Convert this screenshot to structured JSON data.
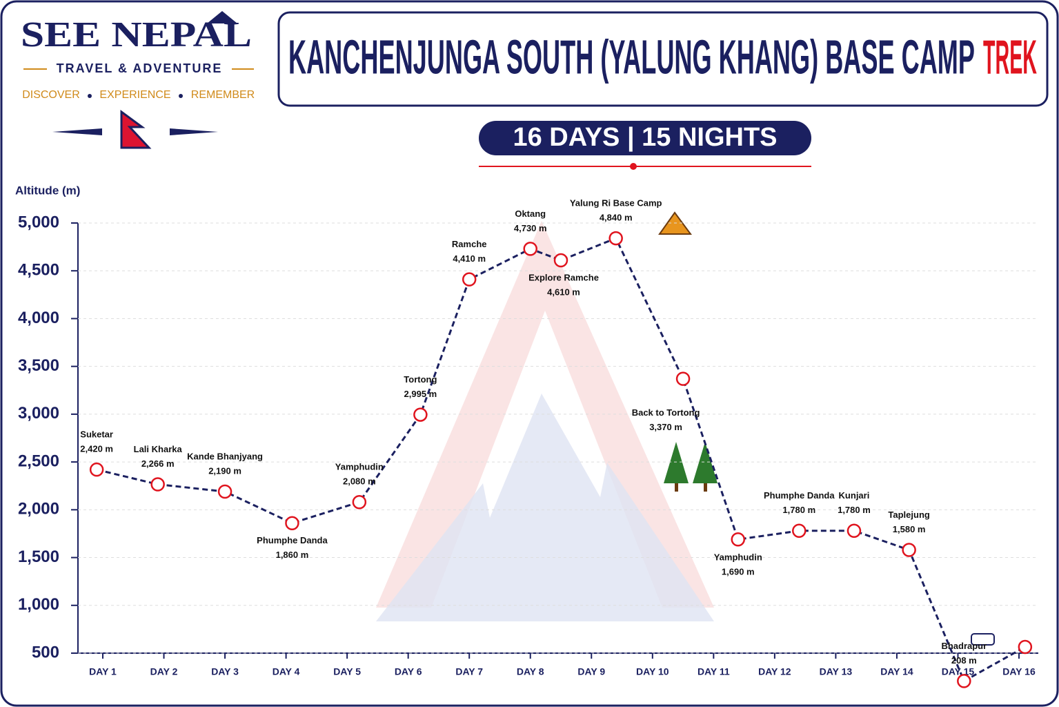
{
  "header": {
    "brand": "SEE NEPAL",
    "tagline": "TRAVEL & ADVENTURE",
    "motto": [
      "DISCOVER",
      "EXPERIENCE",
      "REMEMBER"
    ],
    "title": "KANCHENJUNGA SOUTH (YALUNG KHANG) BASE CAMP",
    "title_accent": "TREK",
    "duration": "16 DAYS | 15 NIGHTS"
  },
  "chart_data": {
    "type": "line",
    "ylabel": "Altitude (m)",
    "x": [
      0.9,
      1.9,
      3.0,
      4.1,
      5.2,
      6.2,
      7.0,
      8.0,
      8.5,
      9.4,
      10.5,
      11.4,
      12.4,
      13.3,
      14.2,
      15.1,
      16.1
    ],
    "names": [
      "Suketar",
      "Lali Kharka",
      "Kande Bhanjyang",
      "Phumphe Danda",
      "Yamphudin",
      "Tortong",
      "Ramche",
      "Oktang",
      "Explore Ramche",
      "Yalung Ri Base Camp",
      "Back to Tortong",
      "Yamphudin",
      "Phumphe Danda",
      "Kunjari",
      "Taplejung",
      "Bhadrapur",
      null
    ],
    "series": [
      {
        "name": "Altitude",
        "color": "#1b2060",
        "values": [
          2420,
          2266,
          2190,
          1860,
          2080,
          2995,
          4410,
          4730,
          4610,
          4840,
          3370,
          1690,
          1780,
          1780,
          1580,
          208,
          565
        ],
        "value_labels": [
          "2,420 m",
          "2,266 m",
          "2,190 m",
          "1,860 m",
          "2,080 m",
          "2,995 m",
          "4,410 m",
          "4,730 m",
          "4,610 m",
          "4,840 m",
          "3,370 m",
          "1,690 m",
          "1,780 m",
          "1,780 m",
          "1,580 m",
          "208 m",
          null
        ]
      }
    ],
    "marker_color": "#e0141e",
    "xlim": [
      0.6,
      16.3
    ],
    "xticks": [
      {
        "value": 1,
        "label": "DAY 1"
      },
      {
        "value": 2,
        "label": "DAY 2"
      },
      {
        "value": 3,
        "label": "DAY 3"
      },
      {
        "value": 4,
        "label": "DAY 4"
      },
      {
        "value": 5,
        "label": "DAY 5"
      },
      {
        "value": 6,
        "label": "DAY 6"
      },
      {
        "value": 7,
        "label": "DAY 7"
      },
      {
        "value": 8,
        "label": "DAY 8"
      },
      {
        "value": 9,
        "label": "DAY 9"
      },
      {
        "value": 10,
        "label": "DAY 10"
      },
      {
        "value": 11,
        "label": "DAY 11"
      },
      {
        "value": 12,
        "label": "DAY 12"
      },
      {
        "value": 13,
        "label": "DAY 13"
      },
      {
        "value": 14,
        "label": "DAY 14"
      },
      {
        "value": 15,
        "label": "DAY 15"
      },
      {
        "value": 16,
        "label": "DAY 16"
      }
    ],
    "ylim": [
      500,
      5000
    ],
    "yticks": [
      500,
      {
        "value": 1000,
        "label": "1,000"
      },
      {
        "value": 1500,
        "label": "1,500"
      },
      {
        "value": 2000,
        "label": "2,000"
      },
      {
        "value": 2500,
        "label": "2,500"
      },
      {
        "value": 3000,
        "label": "3,000"
      },
      {
        "value": 3500,
        "label": "3,500"
      },
      {
        "value": 4000,
        "label": "4,000"
      },
      {
        "value": 4500,
        "label": "4,500"
      },
      {
        "value": 5000,
        "label": "5,000"
      }
    ],
    "grid": true
  }
}
